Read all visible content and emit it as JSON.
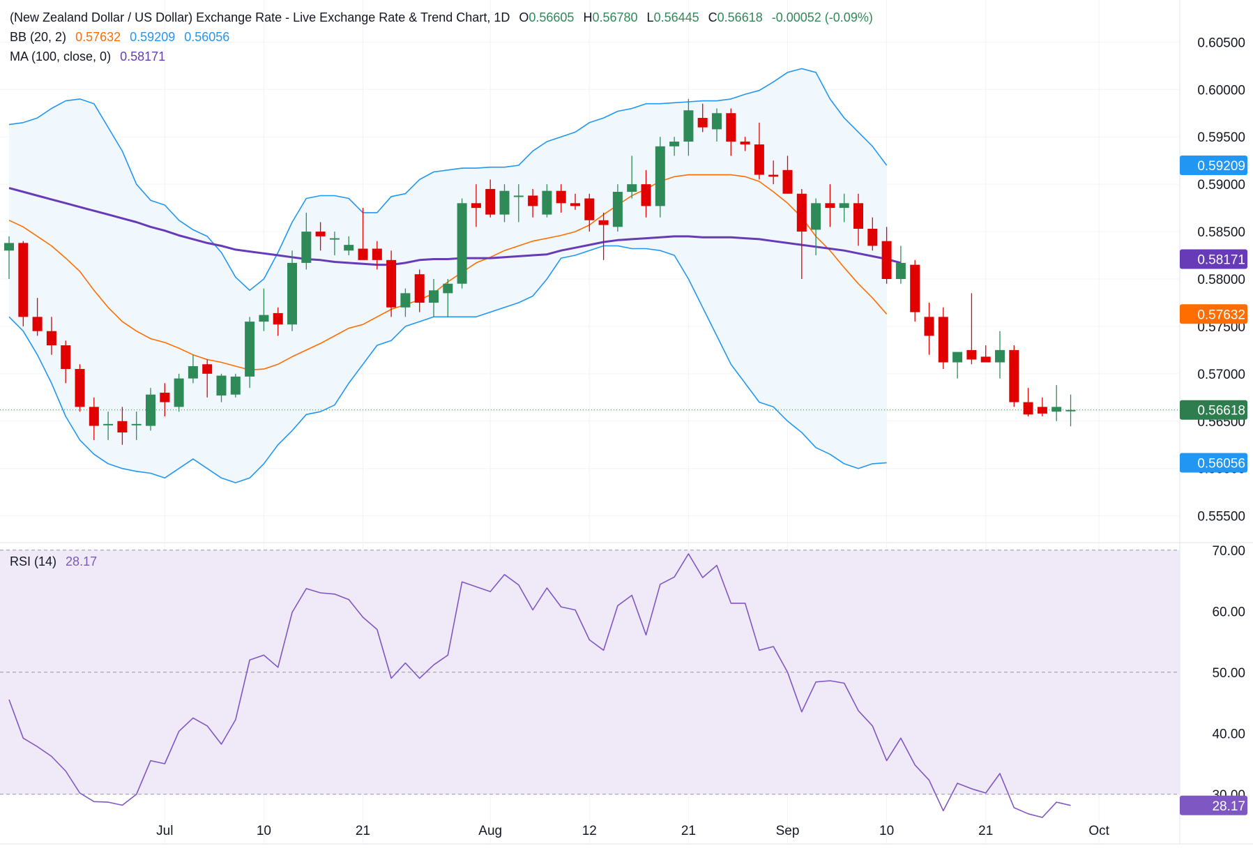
{
  "header": {
    "title": "(New Zealand Dollar / US Dollar) Exchange Rate - Live Exchange Rate & Trend Chart, 1D",
    "ohlc": {
      "o_label": "O",
      "o": "0.56605",
      "h_label": "H",
      "h": "0.56780",
      "l_label": "L",
      "l": "0.56445",
      "c_label": "C",
      "c": "0.56618",
      "change": "-0.00052 (-0.09%)"
    }
  },
  "indicators": {
    "bb": {
      "label": "BB (20, 2)",
      "basis": "0.57632",
      "upper": "0.59209",
      "lower": "0.56056"
    },
    "ma": {
      "label": "MA (100, close, 0)",
      "value": "0.58171"
    },
    "rsi": {
      "label": "RSI (14)",
      "value": "28.17"
    }
  },
  "colors": {
    "up": "#2e8b57",
    "down": "#e00000",
    "bb_band": "#2196f3",
    "bb_basis": "#ff6d00",
    "ma": "#673ab7",
    "rsi": "#7e57c2",
    "rsi_fill": "#efe9f8",
    "band_fill": "#f0f7fd",
    "last_price": "#2e7d4f"
  },
  "price_labels": {
    "upper": "0.59209",
    "ma": "0.58171",
    "basis": "0.57632",
    "last": "0.56618",
    "lower": "0.56056",
    "rsi": "28.17"
  },
  "chart_data": [
    {
      "type": "candlestick",
      "name": "NZDUSD 1D",
      "x_ticks": [
        "Jul",
        "10",
        "21",
        "Aug",
        "12",
        "21",
        "Sep",
        "10",
        "21",
        "Oct"
      ],
      "x_tick_index": [
        11,
        18,
        25,
        34,
        41,
        48,
        55,
        62,
        69,
        77
      ],
      "y_ticks": [
        "0.60500",
        "0.60000",
        "0.59500",
        "0.59000",
        "0.58500",
        "0.58000",
        "0.57500",
        "0.57000",
        "0.56500",
        "0.56000",
        "0.55500"
      ],
      "ylim": [
        0.5535,
        0.6065
      ],
      "candles": [
        [
          0.583,
          0.5845,
          0.58,
          0.5838
        ],
        [
          0.5838,
          0.584,
          0.575,
          0.576
        ],
        [
          0.576,
          0.578,
          0.574,
          0.5745
        ],
        [
          0.5745,
          0.576,
          0.572,
          0.573
        ],
        [
          0.573,
          0.5735,
          0.569,
          0.5705
        ],
        [
          0.5705,
          0.571,
          0.566,
          0.5665
        ],
        [
          0.5665,
          0.5675,
          0.563,
          0.5645
        ],
        [
          0.5647,
          0.566,
          0.563,
          0.5647
        ],
        [
          0.565,
          0.5665,
          0.5625,
          0.5638
        ],
        [
          0.5647,
          0.566,
          0.563,
          0.5647
        ],
        [
          0.5645,
          0.5685,
          0.564,
          0.5678
        ],
        [
          0.568,
          0.569,
          0.5655,
          0.567
        ],
        [
          0.5665,
          0.57,
          0.566,
          0.5695
        ],
        [
          0.5695,
          0.572,
          0.569,
          0.5708
        ],
        [
          0.571,
          0.5715,
          0.5675,
          0.57
        ],
        [
          0.5677,
          0.57,
          0.567,
          0.5698
        ],
        [
          0.5678,
          0.57,
          0.5675,
          0.5697
        ],
        [
          0.5697,
          0.576,
          0.5685,
          0.5755
        ],
        [
          0.5755,
          0.579,
          0.5745,
          0.5762
        ],
        [
          0.5764,
          0.577,
          0.574,
          0.5752
        ],
        [
          0.5752,
          0.583,
          0.5745,
          0.5817
        ],
        [
          0.5817,
          0.587,
          0.581,
          0.585
        ],
        [
          0.585,
          0.586,
          0.583,
          0.5845
        ],
        [
          0.5843,
          0.585,
          0.5825,
          0.5843
        ],
        [
          0.583,
          0.5845,
          0.5825,
          0.5836
        ],
        [
          0.5832,
          0.5875,
          0.5825,
          0.582
        ],
        [
          0.5832,
          0.584,
          0.581,
          0.582
        ],
        [
          0.582,
          0.583,
          0.576,
          0.577
        ],
        [
          0.577,
          0.579,
          0.576,
          0.5785
        ],
        [
          0.5805,
          0.581,
          0.5765,
          0.5775
        ],
        [
          0.5775,
          0.58,
          0.576,
          0.5788
        ],
        [
          0.5785,
          0.58,
          0.576,
          0.5795
        ],
        [
          0.5795,
          0.5885,
          0.579,
          0.588
        ],
        [
          0.588,
          0.59,
          0.5855,
          0.5875
        ],
        [
          0.5895,
          0.5905,
          0.5865,
          0.5868
        ],
        [
          0.5868,
          0.59,
          0.586,
          0.5893
        ],
        [
          0.5888,
          0.59,
          0.586,
          0.5888
        ],
        [
          0.5888,
          0.5895,
          0.5865,
          0.5877
        ],
        [
          0.5868,
          0.59,
          0.5865,
          0.5893
        ],
        [
          0.5893,
          0.59,
          0.587,
          0.588
        ],
        [
          0.588,
          0.589,
          0.5873,
          0.5877
        ],
        [
          0.5885,
          0.589,
          0.585,
          0.5862
        ],
        [
          0.5862,
          0.587,
          0.582,
          0.5857
        ],
        [
          0.5855,
          0.59,
          0.585,
          0.5892
        ],
        [
          0.5892,
          0.593,
          0.5885,
          0.59
        ],
        [
          0.59,
          0.5915,
          0.5865,
          0.5877
        ],
        [
          0.5877,
          0.595,
          0.5865,
          0.594
        ],
        [
          0.594,
          0.595,
          0.593,
          0.5945
        ],
        [
          0.5945,
          0.599,
          0.593,
          0.5978
        ],
        [
          0.597,
          0.5985,
          0.5955,
          0.596
        ],
        [
          0.5958,
          0.598,
          0.5945,
          0.5975
        ],
        [
          0.5975,
          0.598,
          0.593,
          0.5945
        ],
        [
          0.5945,
          0.595,
          0.5935,
          0.5942
        ],
        [
          0.5942,
          0.5965,
          0.5905,
          0.591
        ],
        [
          0.591,
          0.5925,
          0.59,
          0.5908
        ],
        [
          0.5915,
          0.593,
          0.589,
          0.589
        ],
        [
          0.589,
          0.5895,
          0.58,
          0.585
        ],
        [
          0.5852,
          0.5885,
          0.5825,
          0.588
        ],
        [
          0.588,
          0.59,
          0.5855,
          0.5875
        ],
        [
          0.5875,
          0.589,
          0.586,
          0.588
        ],
        [
          0.588,
          0.589,
          0.5835,
          0.5853
        ],
        [
          0.5853,
          0.5865,
          0.583,
          0.5835
        ],
        [
          0.584,
          0.5855,
          0.5795,
          0.58
        ],
        [
          0.58,
          0.5835,
          0.5795,
          0.5817
        ],
        [
          0.5815,
          0.582,
          0.5755,
          0.5765
        ],
        [
          0.576,
          0.5775,
          0.572,
          0.574
        ],
        [
          0.576,
          0.577,
          0.5705,
          0.5712
        ],
        [
          0.5712,
          0.572,
          0.5695,
          0.5723
        ],
        [
          0.5725,
          0.5785,
          0.571,
          0.5715
        ],
        [
          0.5718,
          0.573,
          0.5715,
          0.5712
        ],
        [
          0.5712,
          0.5745,
          0.5695,
          0.5725
        ],
        [
          0.5725,
          0.573,
          0.5665,
          0.567
        ],
        [
          0.567,
          0.5685,
          0.5655,
          0.5657
        ],
        [
          0.5665,
          0.5675,
          0.5655,
          0.5658
        ],
        [
          0.566,
          0.5688,
          0.565,
          0.5665
        ],
        [
          0.56605,
          0.5678,
          0.56445,
          0.56618
        ]
      ],
      "bb_upper": [
        0.5963,
        0.5965,
        0.597,
        0.598,
        0.5988,
        0.599,
        0.5985,
        0.596,
        0.5935,
        0.59,
        0.5883,
        0.5878,
        0.5862,
        0.5852,
        0.5845,
        0.5828,
        0.5802,
        0.5788,
        0.58,
        0.5828,
        0.586,
        0.5885,
        0.5888,
        0.5888,
        0.5885,
        0.587,
        0.587,
        0.5887,
        0.589,
        0.5905,
        0.5913,
        0.5915,
        0.5917,
        0.5917,
        0.5918,
        0.5918,
        0.592,
        0.5935,
        0.5945,
        0.595,
        0.5955,
        0.5965,
        0.597,
        0.5977,
        0.598,
        0.5985,
        0.5985,
        0.5986,
        0.5987,
        0.5988,
        0.5988,
        0.599,
        0.5995,
        0.5999,
        0.6008,
        0.6018,
        0.6022,
        0.6018,
        0.599,
        0.597,
        0.5955,
        0.594,
        0.592
      ],
      "bb_basis": [
        0.5862,
        0.5855,
        0.5845,
        0.5835,
        0.5822,
        0.5808,
        0.5788,
        0.577,
        0.5755,
        0.5745,
        0.5737,
        0.5733,
        0.5727,
        0.572,
        0.5715,
        0.5712,
        0.5708,
        0.5704,
        0.5705,
        0.571,
        0.5718,
        0.5725,
        0.5732,
        0.574,
        0.5748,
        0.5752,
        0.576,
        0.5768,
        0.5773,
        0.5778,
        0.5785,
        0.5797,
        0.5807,
        0.5817,
        0.5823,
        0.583,
        0.5835,
        0.584,
        0.5843,
        0.5846,
        0.585,
        0.5857,
        0.5868,
        0.5878,
        0.5888,
        0.5895,
        0.5903,
        0.5908,
        0.591,
        0.591,
        0.591,
        0.591,
        0.5908,
        0.5903,
        0.5892,
        0.588,
        0.5865,
        0.5845,
        0.583,
        0.5812,
        0.5795,
        0.578,
        0.5763
      ],
      "bb_lower": [
        0.576,
        0.5745,
        0.572,
        0.569,
        0.5655,
        0.563,
        0.5615,
        0.5605,
        0.56,
        0.5597,
        0.5595,
        0.559,
        0.56,
        0.561,
        0.56,
        0.559,
        0.5585,
        0.559,
        0.5605,
        0.5625,
        0.564,
        0.5657,
        0.566,
        0.5667,
        0.569,
        0.571,
        0.573,
        0.5735,
        0.575,
        0.5755,
        0.576,
        0.576,
        0.576,
        0.576,
        0.5765,
        0.577,
        0.5775,
        0.5782,
        0.58,
        0.5822,
        0.5825,
        0.583,
        0.5835,
        0.5835,
        0.5832,
        0.5832,
        0.583,
        0.5825,
        0.58,
        0.577,
        0.574,
        0.571,
        0.569,
        0.567,
        0.5665,
        0.565,
        0.5638,
        0.5622,
        0.5615,
        0.5605,
        0.56,
        0.5605,
        0.5606
      ],
      "ma": [
        0.5896,
        0.5892,
        0.5888,
        0.5884,
        0.588,
        0.5876,
        0.5872,
        0.5868,
        0.5864,
        0.586,
        0.5855,
        0.5851,
        0.5846,
        0.5842,
        0.5838,
        0.5835,
        0.5831,
        0.5829,
        0.5827,
        0.5825,
        0.5823,
        0.5821,
        0.582,
        0.5818,
        0.5817,
        0.5816,
        0.5815,
        0.5815,
        0.5817,
        0.582,
        0.5821,
        0.5821,
        0.5822,
        0.5822,
        0.5822,
        0.5823,
        0.5824,
        0.5825,
        0.5826,
        0.583,
        0.5833,
        0.5836,
        0.5839,
        0.5841,
        0.5842,
        0.5843,
        0.5844,
        0.5845,
        0.5845,
        0.5844,
        0.5844,
        0.5844,
        0.5843,
        0.5842,
        0.584,
        0.5838,
        0.5836,
        0.5834,
        0.5832,
        0.583,
        0.5827,
        0.5824,
        0.5821,
        0.5817
      ],
      "band_start_index": 0,
      "last_price": 0.56618
    },
    {
      "type": "line",
      "name": "RSI (14)",
      "y_ticks": [
        "70.00",
        "60.00",
        "50.00",
        "40.00",
        "30.00"
      ],
      "ylim": [
        23,
        71
      ],
      "levels": [
        70,
        50,
        30
      ],
      "values": [
        45.5,
        39.2,
        37.8,
        36.2,
        33.8,
        30.2,
        28.8,
        28.7,
        28.2,
        30.0,
        35.5,
        35.0,
        40.3,
        42.5,
        41.2,
        38.2,
        42.2,
        52.0,
        52.8,
        50.8,
        59.8,
        63.7,
        63.0,
        62.8,
        61.9,
        59.0,
        57.0,
        49.0,
        51.5,
        49.0,
        51.2,
        52.8,
        64.8,
        64.0,
        63.2,
        66.0,
        64.3,
        60.2,
        63.8,
        60.7,
        60.2,
        55.3,
        53.6,
        60.9,
        62.6,
        56.1,
        64.4,
        65.6,
        69.4,
        65.5,
        67.5,
        61.3,
        61.3,
        53.6,
        54.2,
        50.0,
        43.5,
        48.4,
        48.6,
        48.2,
        43.7,
        41.2,
        35.5,
        39.2,
        34.8,
        32.3,
        27.3,
        31.8,
        30.9,
        30.2,
        33.4,
        27.8,
        26.8,
        26.2,
        28.7,
        28.17
      ]
    }
  ]
}
